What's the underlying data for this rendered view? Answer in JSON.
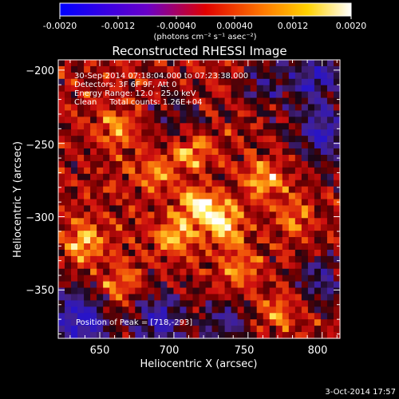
{
  "colorbar": {
    "ticks": [
      "-0.0020",
      "-0.0012",
      "-0.00040",
      "0.00040",
      "0.0012",
      "0.0020"
    ],
    "units": "(photons cm⁻² s⁻¹ asec⁻²)"
  },
  "title": "Reconstructed RHESSI Image",
  "info": {
    "line1": "30-Sep-2014 07:18:04.000 to 07:23:38.000",
    "line2": "Detectors: 3F 6F 9F, Att 0",
    "line3": "Energy Range: 12.0 - 25.0 keV",
    "line4": "Clean     Total counts: 1.26E+04"
  },
  "peak_label": "Position of Peak = [718,-293]",
  "footer_date": "3-Oct-2014 17:57",
  "chart_data": {
    "type": "heatmap",
    "title": "Reconstructed RHESSI Image",
    "xlabel": "Heliocentric X (arcsec)",
    "ylabel": "Heliocentric Y (arcsec)",
    "xlim": [
      622,
      812
    ],
    "ylim": [
      -383,
      -193
    ],
    "x_ticks": [
      650,
      700,
      750,
      800
    ],
    "y_ticks": [
      -200,
      -250,
      -300,
      -350
    ],
    "x_tick_labels": [
      "650",
      "700",
      "750",
      "800"
    ],
    "y_tick_labels": [
      "−200",
      "−250",
      "−300",
      "−350"
    ],
    "colorbar_range": [
      -0.002,
      0.002
    ],
    "colormap": "red-temperature",
    "colors": {
      "low": "#2b1bd6",
      "mid": "#c0121e",
      "high": "#ffffff"
    },
    "peak": {
      "x": 718,
      "y": -293
    },
    "bright_sources": [
      {
        "x": 718,
        "y": -293,
        "level": 1.0
      },
      {
        "x": 735,
        "y": -305,
        "level": 0.85
      },
      {
        "x": 700,
        "y": -315,
        "level": 0.8
      },
      {
        "x": 712,
        "y": -255,
        "level": 0.75
      },
      {
        "x": 760,
        "y": -275,
        "level": 0.7
      },
      {
        "x": 640,
        "y": -318,
        "level": 0.75
      },
      {
        "x": 688,
        "y": -270,
        "level": 0.6
      },
      {
        "x": 665,
        "y": -345,
        "level": 0.55
      },
      {
        "x": 745,
        "y": -335,
        "level": 0.55
      },
      {
        "x": 770,
        "y": -365,
        "level": 0.5
      },
      {
        "x": 662,
        "y": -240,
        "level": 0.55
      },
      {
        "x": 780,
        "y": -300,
        "level": 0.45
      }
    ],
    "dark_regions": [
      {
        "x": 800,
        "y": -245,
        "level": 0.9
      },
      {
        "x": 795,
        "y": -205,
        "level": 0.8
      },
      {
        "x": 690,
        "y": -370,
        "level": 0.85
      },
      {
        "x": 640,
        "y": -375,
        "level": 0.8
      },
      {
        "x": 735,
        "y": -375,
        "level": 0.6
      },
      {
        "x": 800,
        "y": -345,
        "level": 0.6
      },
      {
        "x": 760,
        "y": -210,
        "level": 0.45
      },
      {
        "x": 700,
        "y": -235,
        "level": 0.4
      },
      {
        "x": 630,
        "y": -360,
        "level": 0.5
      }
    ]
  }
}
